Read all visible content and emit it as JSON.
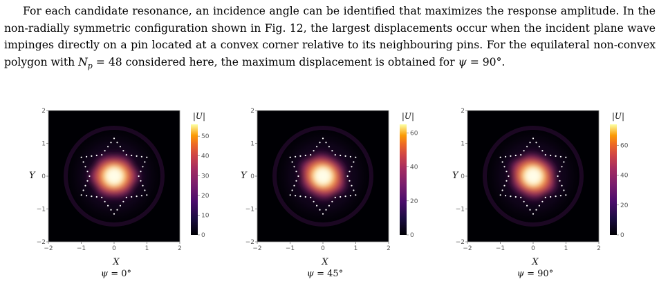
{
  "text": {
    "line1": "For each candidate resonance, an incidence angle can be identified that maximizes the response amplitude. In the non-radially symmetric configuration shown in Fig. 12, the largest displacements occur when the incident plane wave impinges directly on a pin located at a convex corner relative to its neighbouring pins. For the equilateral non-convex polygon with ",
    "np_symbol": "N",
    "np_sub": "p",
    "np_eq": " = 48",
    "line2": " considered here, the maximum displacement is obtained for ",
    "psi_symbol": "ψ",
    "psi_eq": " = 90°",
    "end": "."
  },
  "axes": {
    "xlabel": "X",
    "ylabel": "Y",
    "xticks": [
      "−2",
      "−1",
      "0",
      "1",
      "2"
    ],
    "yticks": [
      "2",
      "1",
      "0",
      "−1",
      "−2"
    ],
    "colorbar_title": "|U|"
  },
  "panels": [
    {
      "psi_label": "ψ",
      "psi_value": " = 0°",
      "cb_ticks": [
        "50",
        "40",
        "30",
        "20",
        "10",
        "0"
      ],
      "cb_max": 56
    },
    {
      "psi_label": "ψ",
      "psi_value": " = 45°",
      "cb_ticks": [
        "60",
        "40",
        "20",
        "0"
      ],
      "cb_max": 65
    },
    {
      "psi_label": "ψ",
      "psi_value": " = 90°",
      "cb_ticks": [
        "60",
        "40",
        "20",
        "0"
      ],
      "cb_max": 74
    }
  ],
  "colors": {
    "low": "#000004",
    "mid": "#8b2b6f",
    "high": "#fcffa4",
    "pins": "#ffffff"
  },
  "chart_data": [
    {
      "type": "heatmap",
      "title": "ψ = 0°",
      "xlabel": "X",
      "ylabel": "Y",
      "xlim": [
        -2,
        2
      ],
      "ylim": [
        -2,
        2
      ],
      "colorbar": "|U|",
      "clim": [
        0,
        56
      ],
      "pins": 48
    },
    {
      "type": "heatmap",
      "title": "ψ = 45°",
      "xlabel": "X",
      "ylabel": "Y",
      "xlim": [
        -2,
        2
      ],
      "ylim": [
        -2,
        2
      ],
      "colorbar": "|U|",
      "clim": [
        0,
        65
      ],
      "pins": 48
    },
    {
      "type": "heatmap",
      "title": "ψ = 90°",
      "xlabel": "X",
      "ylabel": "Y",
      "xlim": [
        -2,
        2
      ],
      "ylim": [
        -2,
        2
      ],
      "colorbar": "|U|",
      "clim": [
        0,
        74
      ],
      "pins": 48
    }
  ]
}
